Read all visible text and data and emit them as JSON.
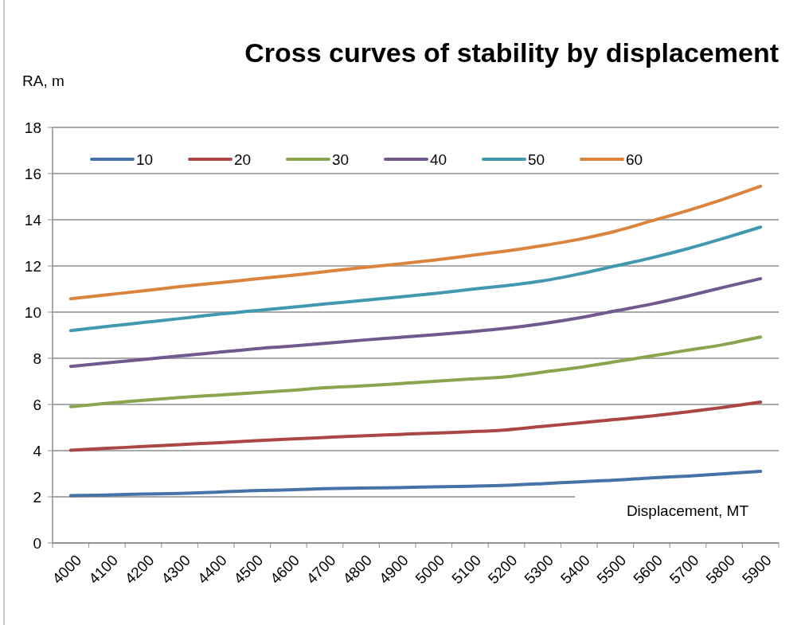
{
  "chart_data": {
    "type": "line",
    "title": "Cross curves of stability by displacement",
    "xlabel": "Displacement, MT",
    "ylabel": "RA, m",
    "categories": [
      "4000",
      "4100",
      "4200",
      "4300",
      "4400",
      "4500",
      "4600",
      "4700",
      "4800",
      "4900",
      "5000",
      "5100",
      "5200",
      "5300",
      "5400",
      "5500",
      "5600",
      "5700",
      "5800",
      "5900"
    ],
    "series": [
      {
        "name": "10",
        "color": "#4572a7",
        "values": [
          2.05,
          2.08,
          2.12,
          2.15,
          2.2,
          2.27,
          2.3,
          2.35,
          2.38,
          2.4,
          2.43,
          2.46,
          2.5,
          2.57,
          2.65,
          2.72,
          2.82,
          2.9,
          3.0,
          3.1
        ]
      },
      {
        "name": "20",
        "color": "#aa4643",
        "values": [
          4.02,
          4.1,
          4.18,
          4.26,
          4.34,
          4.42,
          4.5,
          4.57,
          4.64,
          4.7,
          4.76,
          4.82,
          4.9,
          5.05,
          5.2,
          5.35,
          5.5,
          5.68,
          5.88,
          6.1
        ]
      },
      {
        "name": "30",
        "color": "#89a54e",
        "values": [
          5.9,
          6.05,
          6.18,
          6.3,
          6.4,
          6.5,
          6.6,
          6.72,
          6.8,
          6.9,
          7.0,
          7.1,
          7.2,
          7.4,
          7.6,
          7.85,
          8.1,
          8.35,
          8.6,
          8.92
        ]
      },
      {
        "name": "40",
        "color": "#71588f",
        "values": [
          7.65,
          7.8,
          7.95,
          8.1,
          8.25,
          8.4,
          8.52,
          8.65,
          8.78,
          8.9,
          9.02,
          9.15,
          9.3,
          9.5,
          9.75,
          10.05,
          10.35,
          10.7,
          11.08,
          11.45
        ]
      },
      {
        "name": "50",
        "color": "#4198af",
        "values": [
          9.2,
          9.38,
          9.55,
          9.72,
          9.9,
          10.05,
          10.2,
          10.35,
          10.5,
          10.65,
          10.8,
          10.98,
          11.15,
          11.35,
          11.65,
          12.0,
          12.35,
          12.75,
          13.2,
          13.68
        ]
      },
      {
        "name": "60",
        "color": "#db843d",
        "values": [
          10.58,
          10.75,
          10.92,
          11.1,
          11.26,
          11.42,
          11.58,
          11.75,
          11.92,
          12.08,
          12.25,
          12.45,
          12.65,
          12.88,
          13.15,
          13.5,
          13.95,
          14.4,
          14.9,
          15.45
        ]
      }
    ],
    "ylim": [
      0,
      18
    ],
    "yticks": [
      0,
      2,
      4,
      6,
      8,
      10,
      12,
      14,
      16,
      18
    ],
    "grid": "y",
    "legend": "top",
    "marker": "none",
    "line_style": "solid"
  }
}
